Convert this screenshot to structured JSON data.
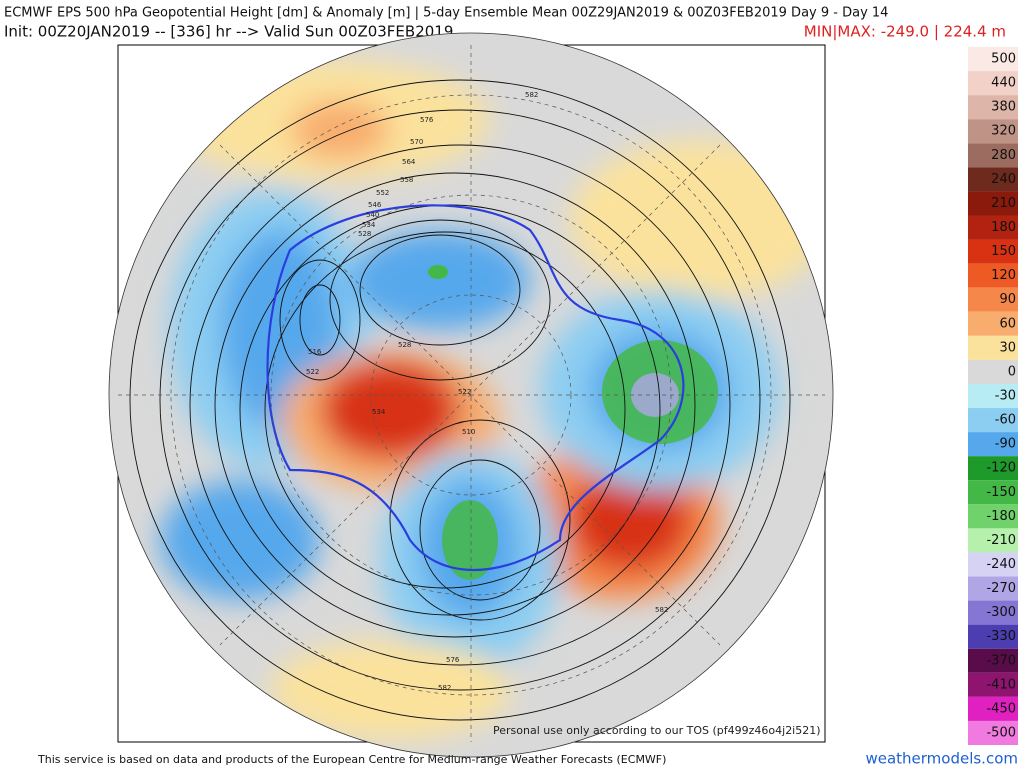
{
  "header": {
    "line1": "ECMWF EPS 500 hPa Geopotential Height [dm] & Anomaly [m] | 5-day Ensemble Mean 00Z29JAN2019 & 00Z03FEB2019  Day 9 - Day 14",
    "line2": "Init: 00Z20JAN2019 -- [336] hr --> Valid Sun 00Z03FEB2019",
    "minmax": "MIN|MAX: -249.0 | 224.4 m"
  },
  "map": {
    "contour_labels": [
      "588",
      "582",
      "576",
      "570",
      "564",
      "558",
      "552",
      "546",
      "540",
      "534",
      "528",
      "522",
      "516",
      "510",
      "522",
      "528",
      "534",
      "582",
      "576",
      "582"
    ],
    "watermark": "Personal use only according to our TOS (pf499z46o4j2i521)"
  },
  "colorbar": [
    {
      "value": 500,
      "color": "#fbe9e6"
    },
    {
      "value": 440,
      "color": "#f2d2c8"
    },
    {
      "value": 380,
      "color": "#ddb5a9"
    },
    {
      "value": 320,
      "color": "#c09387"
    },
    {
      "value": 280,
      "color": "#9c6c60"
    },
    {
      "value": 240,
      "color": "#6e2a1c"
    },
    {
      "value": 210,
      "color": "#8c1a0c"
    },
    {
      "value": 180,
      "color": "#b22210"
    },
    {
      "value": 150,
      "color": "#d83212"
    },
    {
      "value": 120,
      "color": "#ee5a24"
    },
    {
      "value": 90,
      "color": "#f5874a"
    },
    {
      "value": 60,
      "color": "#f8ad6e"
    },
    {
      "value": 30,
      "color": "#fbe29c"
    },
    {
      "value": 0,
      "color": "#d9d9d9"
    },
    {
      "value": -30,
      "color": "#b8ecf5"
    },
    {
      "value": -60,
      "color": "#8ccdf2"
    },
    {
      "value": -90,
      "color": "#56a8ec"
    },
    {
      "value": -120,
      "color": "#1e9a2a"
    },
    {
      "value": -150,
      "color": "#44b846"
    },
    {
      "value": -180,
      "color": "#6fd26a"
    },
    {
      "value": -210,
      "color": "#b6f0ad"
    },
    {
      "value": -240,
      "color": "#d6d2f4"
    },
    {
      "value": -270,
      "color": "#b0a6e6"
    },
    {
      "value": -300,
      "color": "#8476d2"
    },
    {
      "value": -330,
      "color": "#4c3eb0"
    },
    {
      "value": -370,
      "color": "#5a0c4a"
    },
    {
      "value": -410,
      "color": "#8e1470"
    },
    {
      "value": -450,
      "color": "#e020c0"
    },
    {
      "value": -500,
      "color": "#f07ae0"
    }
  ],
  "footer": {
    "credit": "This service is based on data and products of the European Centre for Medium-range Weather Forecasts (ECMWF)",
    "site": "weathermodels.com"
  }
}
